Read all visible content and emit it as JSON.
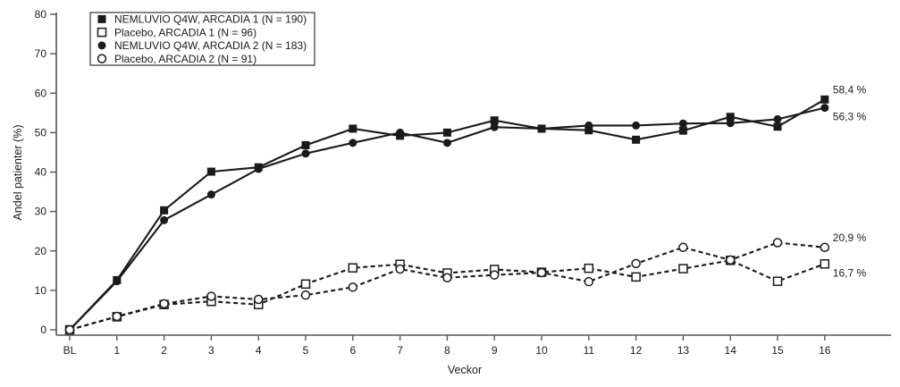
{
  "chart_data": {
    "type": "line",
    "title": "",
    "xlabel": "Veckor",
    "ylabel": "Andel patienter (%)",
    "ylim": [
      0,
      80
    ],
    "yticks": [
      0,
      10,
      20,
      30,
      40,
      50,
      60,
      70,
      80
    ],
    "categories": [
      "BL",
      "1",
      "2",
      "3",
      "4",
      "5",
      "6",
      "7",
      "8",
      "9",
      "10",
      "11",
      "12",
      "13",
      "14",
      "15",
      "16"
    ],
    "grid": "off",
    "legend_position": "top-left",
    "colors": {
      "ink": "#1a1a1a",
      "axis": "#555555",
      "background": "#ffffff"
    },
    "series": [
      {
        "id": "nemluvio-arcadia-1",
        "name": "NEMLUVIO Q4W, ARCADIA 1 (N = 190)",
        "marker": "filled-square",
        "line": "solid",
        "values": [
          0,
          12.6,
          30.3,
          40.1,
          41.2,
          46.8,
          51.0,
          49.2,
          50.0,
          53.1,
          51.0,
          50.6,
          48.2,
          50.5,
          54.0,
          51.5,
          58.4
        ],
        "end_label": "58,4 %",
        "end_label_position": "above"
      },
      {
        "id": "placebo-arcadia-1",
        "name": "Placebo, ARCADIA 1 (N = 96)",
        "marker": "open-square",
        "line": "dashed",
        "values": [
          0,
          3.3,
          6.4,
          7.2,
          6.4,
          11.6,
          15.7,
          16.6,
          14.4,
          15.3,
          14.6,
          15.6,
          13.4,
          15.5,
          17.6,
          12.3,
          16.7
        ],
        "end_label": "16,7 %",
        "end_label_position": "below"
      },
      {
        "id": "nemluvio-arcadia-2",
        "name": "NEMLUVIO Q4W, ARCADIA 2 (N = 183)",
        "marker": "filled-circle",
        "line": "solid",
        "values": [
          0,
          12.3,
          27.8,
          34.3,
          40.8,
          44.7,
          47.4,
          50.0,
          47.4,
          51.4,
          51.0,
          51.8,
          51.8,
          52.3,
          52.4,
          53.4,
          56.3
        ],
        "end_label": "56,3 %",
        "end_label_position": "below"
      },
      {
        "id": "placebo-arcadia-2",
        "name": "Placebo, ARCADIA 2 (N = 91)",
        "marker": "open-circle",
        "line": "dashed",
        "values": [
          0,
          3.4,
          6.6,
          8.5,
          7.7,
          8.8,
          10.8,
          15.4,
          13.2,
          13.9,
          14.5,
          12.2,
          16.8,
          20.9,
          17.7,
          22.1,
          20.9
        ],
        "end_label": "20,9 %",
        "end_label_position": "above"
      }
    ]
  }
}
